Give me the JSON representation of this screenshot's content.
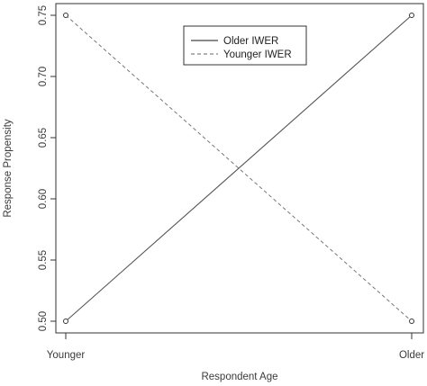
{
  "chart_data": {
    "type": "line",
    "title": "",
    "xlabel": "Respondent Age",
    "ylabel": "Response Propensity",
    "categories": [
      "Younger",
      "Older"
    ],
    "ylim": [
      0.5,
      0.75
    ],
    "yticks": [
      "0.50",
      "0.55",
      "0.60",
      "0.65",
      "0.70",
      "0.75"
    ],
    "grid": false,
    "legend_position": "top-center",
    "series": [
      {
        "name": "Older IWER",
        "values": [
          0.5,
          0.75
        ],
        "line_style": "solid",
        "color": "#555555"
      },
      {
        "name": "Younger IWER",
        "values": [
          0.75,
          0.5
        ],
        "line_style": "dashed",
        "color": "#777777"
      }
    ]
  }
}
